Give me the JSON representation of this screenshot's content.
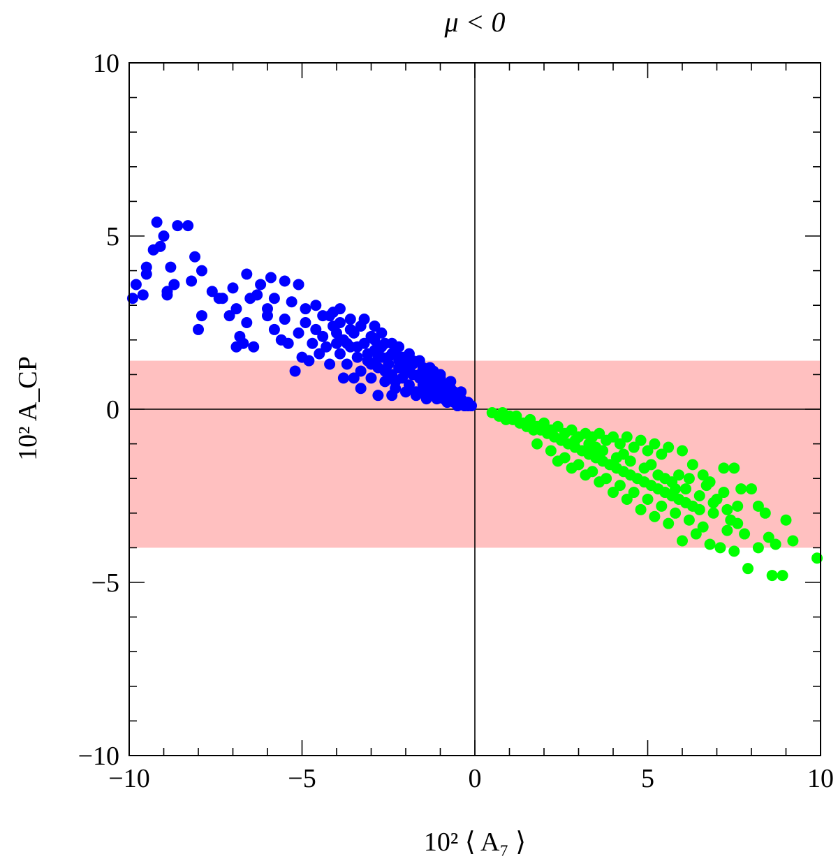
{
  "chart_data": {
    "type": "scatter",
    "title": "μ < 0",
    "xlabel": "10² ⟨ A₇ ⟩",
    "ylabel": "10²  A_CP",
    "xlim": [
      -10,
      10
    ],
    "ylim": [
      -10,
      10
    ],
    "x_ticks": [
      -10,
      -5,
      0,
      5,
      10
    ],
    "y_ticks": [
      -10,
      -5,
      0,
      5,
      10
    ],
    "x_tick_labels": [
      "−10",
      "−5",
      "0",
      "5",
      "10"
    ],
    "y_tick_labels": [
      "−10",
      "−5",
      "0",
      "5",
      "10"
    ],
    "grid": false,
    "reference_lines": {
      "x": 0,
      "y": 0
    },
    "band": {
      "y_min": -4.0,
      "y_max": 1.4,
      "color": "#ffc0c0"
    },
    "series": [
      {
        "color": "#0000ff",
        "points": [
          [
            -9.9,
            3.2
          ],
          [
            -9.8,
            3.6
          ],
          [
            -9.6,
            3.3
          ],
          [
            -9.5,
            3.9
          ],
          [
            -9.5,
            4.1
          ],
          [
            -9.3,
            4.6
          ],
          [
            -9.2,
            5.4
          ],
          [
            -9.1,
            4.7
          ],
          [
            -9.0,
            5.0
          ],
          [
            -8.8,
            4.1
          ],
          [
            -8.6,
            5.3
          ],
          [
            -8.3,
            5.3
          ],
          [
            -8.7,
            3.6
          ],
          [
            -8.9,
            3.3
          ],
          [
            -8.9,
            3.4
          ],
          [
            -8.1,
            4.4
          ],
          [
            -7.9,
            4.0
          ],
          [
            -7.6,
            3.4
          ],
          [
            -7.4,
            3.2
          ],
          [
            -7.0,
            3.5
          ],
          [
            -6.6,
            3.9
          ],
          [
            -6.2,
            3.6
          ],
          [
            -5.9,
            3.8
          ],
          [
            -5.5,
            3.7
          ],
          [
            -5.1,
            3.6
          ],
          [
            -6.9,
            2.9
          ],
          [
            -6.5,
            3.2
          ],
          [
            -6.0,
            2.7
          ],
          [
            -7.9,
            2.7
          ],
          [
            -8.2,
            3.7
          ],
          [
            -8.0,
            2.3
          ],
          [
            -7.3,
            3.2
          ],
          [
            -7.1,
            2.7
          ],
          [
            -6.8,
            2.1
          ],
          [
            -6.6,
            2.5
          ],
          [
            -6.3,
            3.3
          ],
          [
            -6.0,
            2.9
          ],
          [
            -5.8,
            3.2
          ],
          [
            -5.3,
            3.1
          ],
          [
            -4.9,
            2.9
          ],
          [
            -4.6,
            3.0
          ],
          [
            -4.2,
            2.7
          ],
          [
            -3.9,
            2.5
          ],
          [
            -3.5,
            2.2
          ],
          [
            -3.0,
            2.1
          ],
          [
            -2.7,
            2.2
          ],
          [
            -2.4,
            1.9
          ],
          [
            -2.2,
            1.8
          ],
          [
            -1.9,
            1.6
          ],
          [
            -1.6,
            1.4
          ],
          [
            -1.3,
            1.2
          ],
          [
            -1.0,
            0.9
          ],
          [
            -0.7,
            0.6
          ],
          [
            -0.5,
            0.4
          ],
          [
            -0.3,
            0.2
          ],
          [
            -0.1,
            0.1
          ],
          [
            -6.9,
            1.8
          ],
          [
            -6.7,
            1.9
          ],
          [
            -6.4,
            1.8
          ],
          [
            -5.8,
            2.3
          ],
          [
            -5.2,
            1.1
          ],
          [
            -5.0,
            1.5
          ],
          [
            -4.8,
            1.4
          ],
          [
            -4.7,
            1.9
          ],
          [
            -4.5,
            1.6
          ],
          [
            -4.4,
            2.1
          ],
          [
            -4.2,
            1.3
          ],
          [
            -4.1,
            2.4
          ],
          [
            -4.0,
            1.9
          ],
          [
            -3.9,
            1.6
          ],
          [
            -3.8,
            2.0
          ],
          [
            -3.7,
            1.3
          ],
          [
            -3.6,
            1.8
          ],
          [
            -3.5,
            0.9
          ],
          [
            -3.4,
            1.5
          ],
          [
            -3.3,
            1.1
          ],
          [
            -3.2,
            1.9
          ],
          [
            -3.1,
            1.4
          ],
          [
            -3.0,
            0.9
          ],
          [
            -2.9,
            1.7
          ],
          [
            -2.8,
            1.2
          ],
          [
            -2.7,
            1.5
          ],
          [
            -2.6,
            0.8
          ],
          [
            -2.5,
            1.3
          ],
          [
            -2.4,
            1.0
          ],
          [
            -2.3,
            0.6
          ],
          [
            -2.2,
            1.2
          ],
          [
            -2.1,
            0.9
          ],
          [
            -2.0,
            1.1
          ],
          [
            -1.9,
            0.7
          ],
          [
            -1.8,
            1.0
          ],
          [
            -1.7,
            0.5
          ],
          [
            -1.6,
            0.9
          ],
          [
            -1.5,
            0.7
          ],
          [
            -1.4,
            0.6
          ],
          [
            -1.3,
            0.8
          ],
          [
            -1.2,
            0.4
          ],
          [
            -1.1,
            0.6
          ],
          [
            -1.0,
            0.5
          ],
          [
            -0.9,
            0.3
          ],
          [
            -0.8,
            0.5
          ],
          [
            -0.7,
            0.3
          ],
          [
            -0.6,
            0.4
          ],
          [
            -0.4,
            0.3
          ],
          [
            -0.2,
            0.2
          ],
          [
            -3.9,
            2.9
          ],
          [
            -3.6,
            2.6
          ],
          [
            -3.3,
            2.4
          ],
          [
            -2.9,
            2.4
          ],
          [
            -2.6,
            1.9
          ],
          [
            -2.3,
            1.6
          ],
          [
            -2.0,
            1.4
          ],
          [
            -1.8,
            1.3
          ],
          [
            -1.5,
            1.1
          ],
          [
            -1.2,
            0.9
          ],
          [
            -0.9,
            0.7
          ],
          [
            -0.6,
            0.5
          ],
          [
            -5.5,
            2.6
          ],
          [
            -5.1,
            2.2
          ],
          [
            -4.9,
            2.5
          ],
          [
            -4.6,
            2.3
          ],
          [
            -4.3,
            1.8
          ],
          [
            -5.6,
            2.0
          ],
          [
            -5.4,
            1.9
          ],
          [
            -4.0,
            2.2
          ],
          [
            -3.7,
            1.9
          ],
          [
            -3.4,
            1.8
          ],
          [
            -3.1,
            1.6
          ],
          [
            -2.8,
            1.5
          ],
          [
            -2.5,
            1.5
          ],
          [
            -2.2,
            1.4
          ],
          [
            -1.9,
            1.2
          ],
          [
            -1.6,
            1.0
          ],
          [
            -1.3,
            0.9
          ],
          [
            -1.0,
            0.7
          ],
          [
            -0.8,
            0.6
          ],
          [
            -3.8,
            0.9
          ],
          [
            -3.3,
            0.6
          ],
          [
            -2.8,
            0.4
          ],
          [
            -2.4,
            0.4
          ],
          [
            -2.0,
            0.5
          ],
          [
            -1.7,
            0.4
          ],
          [
            -1.4,
            0.3
          ],
          [
            -1.1,
            0.3
          ],
          [
            -0.8,
            0.2
          ],
          [
            -0.5,
            0.1
          ],
          [
            -3.2,
            2.6
          ],
          [
            -2.9,
            2.0
          ],
          [
            -2.7,
            1.8
          ],
          [
            -2.4,
            1.6
          ],
          [
            -2.1,
            1.5
          ],
          [
            -1.8,
            1.4
          ],
          [
            -1.5,
            1.2
          ],
          [
            -1.2,
            1.1
          ],
          [
            -1.0,
            1.0
          ],
          [
            -0.7,
            0.8
          ],
          [
            -0.4,
            0.5
          ],
          [
            -4.4,
            2.7
          ],
          [
            -4.1,
            2.8
          ],
          [
            -3.6,
            2.3
          ],
          [
            -3.0,
            1.3
          ],
          [
            -2.6,
            1.1
          ],
          [
            -2.3,
            0.8
          ],
          [
            -1.9,
            0.6
          ],
          [
            -1.5,
            0.5
          ],
          [
            -1.2,
            0.4
          ],
          [
            -0.9,
            0.4
          ],
          [
            -0.6,
            0.2
          ],
          [
            -0.3,
            0.1
          ],
          [
            -0.2,
            0.1
          ]
        ]
      },
      {
        "color": "#00ff00",
        "points": [
          [
            0.5,
            -0.1
          ],
          [
            0.7,
            -0.2
          ],
          [
            0.9,
            -0.3
          ],
          [
            1.1,
            -0.3
          ],
          [
            1.3,
            -0.4
          ],
          [
            1.5,
            -0.5
          ],
          [
            1.7,
            -0.6
          ],
          [
            1.9,
            -0.6
          ],
          [
            2.1,
            -0.7
          ],
          [
            2.3,
            -0.8
          ],
          [
            2.5,
            -0.9
          ],
          [
            2.7,
            -1.0
          ],
          [
            2.9,
            -1.1
          ],
          [
            3.1,
            -1.2
          ],
          [
            3.3,
            -1.3
          ],
          [
            3.5,
            -1.4
          ],
          [
            3.7,
            -1.5
          ],
          [
            3.9,
            -1.6
          ],
          [
            4.1,
            -1.7
          ],
          [
            4.3,
            -1.8
          ],
          [
            4.5,
            -1.9
          ],
          [
            4.7,
            -2.0
          ],
          [
            4.9,
            -2.1
          ],
          [
            5.1,
            -2.2
          ],
          [
            5.3,
            -2.3
          ],
          [
            5.5,
            -2.4
          ],
          [
            5.7,
            -2.5
          ],
          [
            5.9,
            -2.6
          ],
          [
            6.1,
            -2.7
          ],
          [
            6.3,
            -2.8
          ],
          [
            1.2,
            -0.2
          ],
          [
            1.6,
            -0.3
          ],
          [
            2.0,
            -0.4
          ],
          [
            2.4,
            -0.5
          ],
          [
            2.8,
            -0.6
          ],
          [
            3.2,
            -0.7
          ],
          [
            3.6,
            -0.7
          ],
          [
            4.0,
            -0.8
          ],
          [
            4.4,
            -0.8
          ],
          [
            4.8,
            -0.9
          ],
          [
            5.2,
            -1.0
          ],
          [
            5.6,
            -1.1
          ],
          [
            6.0,
            -1.2
          ],
          [
            1.8,
            -1.0
          ],
          [
            2.2,
            -1.2
          ],
          [
            2.6,
            -1.4
          ],
          [
            3.0,
            -1.6
          ],
          [
            3.4,
            -1.8
          ],
          [
            3.8,
            -2.0
          ],
          [
            4.2,
            -2.2
          ],
          [
            4.6,
            -2.4
          ],
          [
            5.0,
            -2.6
          ],
          [
            5.4,
            -2.8
          ],
          [
            5.8,
            -3.0
          ],
          [
            6.2,
            -3.2
          ],
          [
            6.6,
            -3.4
          ],
          [
            3.3,
            -1.0
          ],
          [
            3.7,
            -1.2
          ],
          [
            4.1,
            -1.4
          ],
          [
            4.5,
            -1.5
          ],
          [
            4.9,
            -1.7
          ],
          [
            5.3,
            -1.9
          ],
          [
            5.7,
            -2.1
          ],
          [
            6.1,
            -2.3
          ],
          [
            6.5,
            -2.5
          ],
          [
            2.9,
            -0.9
          ],
          [
            3.5,
            -1.1
          ],
          [
            4.3,
            -1.3
          ],
          [
            5.1,
            -1.6
          ],
          [
            5.9,
            -1.9
          ],
          [
            6.7,
            -2.2
          ],
          [
            7.0,
            -2.6
          ],
          [
            7.2,
            -2.4
          ],
          [
            6.9,
            -3.0
          ],
          [
            7.4,
            -3.2
          ],
          [
            7.6,
            -2.8
          ],
          [
            7.8,
            -3.6
          ],
          [
            6.8,
            -3.9
          ],
          [
            7.1,
            -4.0
          ],
          [
            7.5,
            -4.1
          ],
          [
            7.9,
            -4.6
          ],
          [
            8.2,
            -4.0
          ],
          [
            8.5,
            -3.7
          ],
          [
            8.7,
            -3.9
          ],
          [
            9.0,
            -3.2
          ],
          [
            9.2,
            -3.8
          ],
          [
            8.6,
            -4.8
          ],
          [
            8.9,
            -4.8
          ],
          [
            9.9,
            -4.3
          ],
          [
            7.3,
            -3.5
          ],
          [
            6.4,
            -3.6
          ],
          [
            6.0,
            -3.8
          ],
          [
            5.6,
            -3.3
          ],
          [
            5.2,
            -3.1
          ],
          [
            4.8,
            -2.9
          ],
          [
            4.4,
            -2.6
          ],
          [
            4.0,
            -2.4
          ],
          [
            3.6,
            -2.1
          ],
          [
            3.2,
            -1.9
          ],
          [
            2.8,
            -1.7
          ],
          [
            2.4,
            -1.5
          ],
          [
            6.3,
            -1.6
          ],
          [
            6.6,
            -1.9
          ],
          [
            6.8,
            -2.1
          ],
          [
            7.2,
            -1.7
          ],
          [
            7.5,
            -1.7
          ],
          [
            7.7,
            -2.3
          ],
          [
            8.0,
            -2.3
          ],
          [
            8.2,
            -2.8
          ],
          [
            8.4,
            -3.0
          ],
          [
            5.4,
            -1.3
          ],
          [
            5.0,
            -1.2
          ],
          [
            4.6,
            -1.1
          ],
          [
            4.2,
            -1.0
          ],
          [
            3.8,
            -0.9
          ],
          [
            3.4,
            -0.8
          ],
          [
            3.0,
            -0.8
          ],
          [
            2.6,
            -0.7
          ],
          [
            2.2,
            -0.6
          ],
          [
            1.8,
            -0.5
          ],
          [
            1.4,
            -0.4
          ],
          [
            1.0,
            -0.2
          ],
          [
            0.8,
            -0.1
          ],
          [
            5.5,
            -2.0
          ],
          [
            5.8,
            -2.3
          ],
          [
            6.2,
            -2.0
          ],
          [
            6.5,
            -2.9
          ],
          [
            6.9,
            -2.7
          ],
          [
            7.3,
            -2.9
          ],
          [
            7.6,
            -3.3
          ]
        ]
      }
    ]
  }
}
